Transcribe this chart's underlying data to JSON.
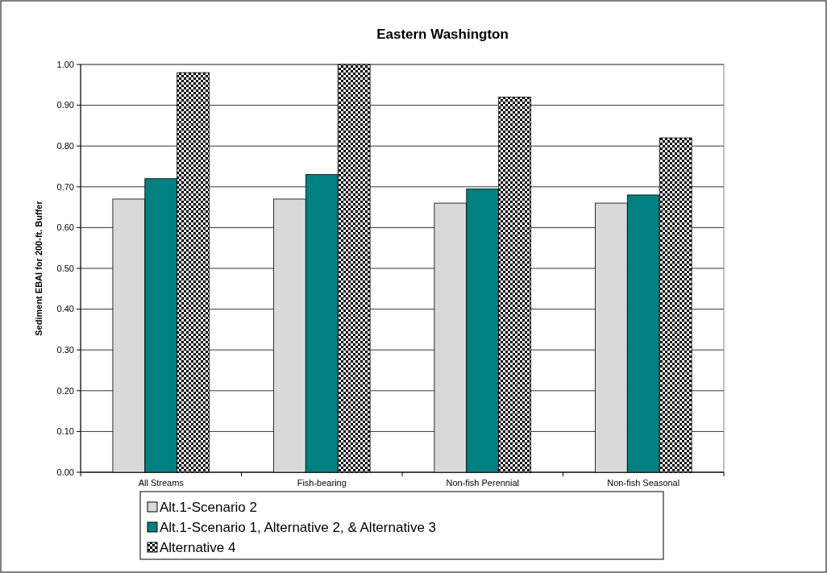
{
  "chart_data": {
    "type": "bar",
    "title": "Eastern Washington",
    "ylabel": "Sediment EBAI for 200-ft. Buffer",
    "categories": [
      "All Streams",
      "Fish-bearing",
      "Non-fish Perennial",
      "Non-fish Seasonal"
    ],
    "series": [
      {
        "name": "Alt.1-Scenario 2",
        "color": "#d9d9d9",
        "values": [
          0.67,
          0.67,
          0.66,
          0.66
        ]
      },
      {
        "name": "Alt.1-Scenario 1, Alternative 2, & Alternative 3",
        "color": "#008080",
        "values": [
          0.72,
          0.73,
          0.695,
          0.68
        ]
      },
      {
        "name": "Alternative 4",
        "color": "#000000",
        "values": [
          0.98,
          1.0,
          0.92,
          0.82
        ]
      }
    ],
    "ylim": [
      0,
      1
    ],
    "yticks": [
      {
        "value": 0,
        "label": "0.00"
      },
      {
        "value": 0.1,
        "label": "0.10"
      },
      {
        "value": 0.2,
        "label": "0.20"
      },
      {
        "value": 0.3,
        "label": "0.30"
      },
      {
        "value": 0.4,
        "label": "0.40"
      },
      {
        "value": 0.5,
        "label": "0.50"
      },
      {
        "value": 0.6,
        "label": "0.60"
      },
      {
        "value": 0.7,
        "label": "0.70"
      },
      {
        "value": 0.8,
        "label": "0.80"
      },
      {
        "value": 0.9,
        "label": "0.90"
      },
      {
        "value": 1,
        "label": "1.00"
      }
    ],
    "grid": "y",
    "legend": "bottom"
  }
}
